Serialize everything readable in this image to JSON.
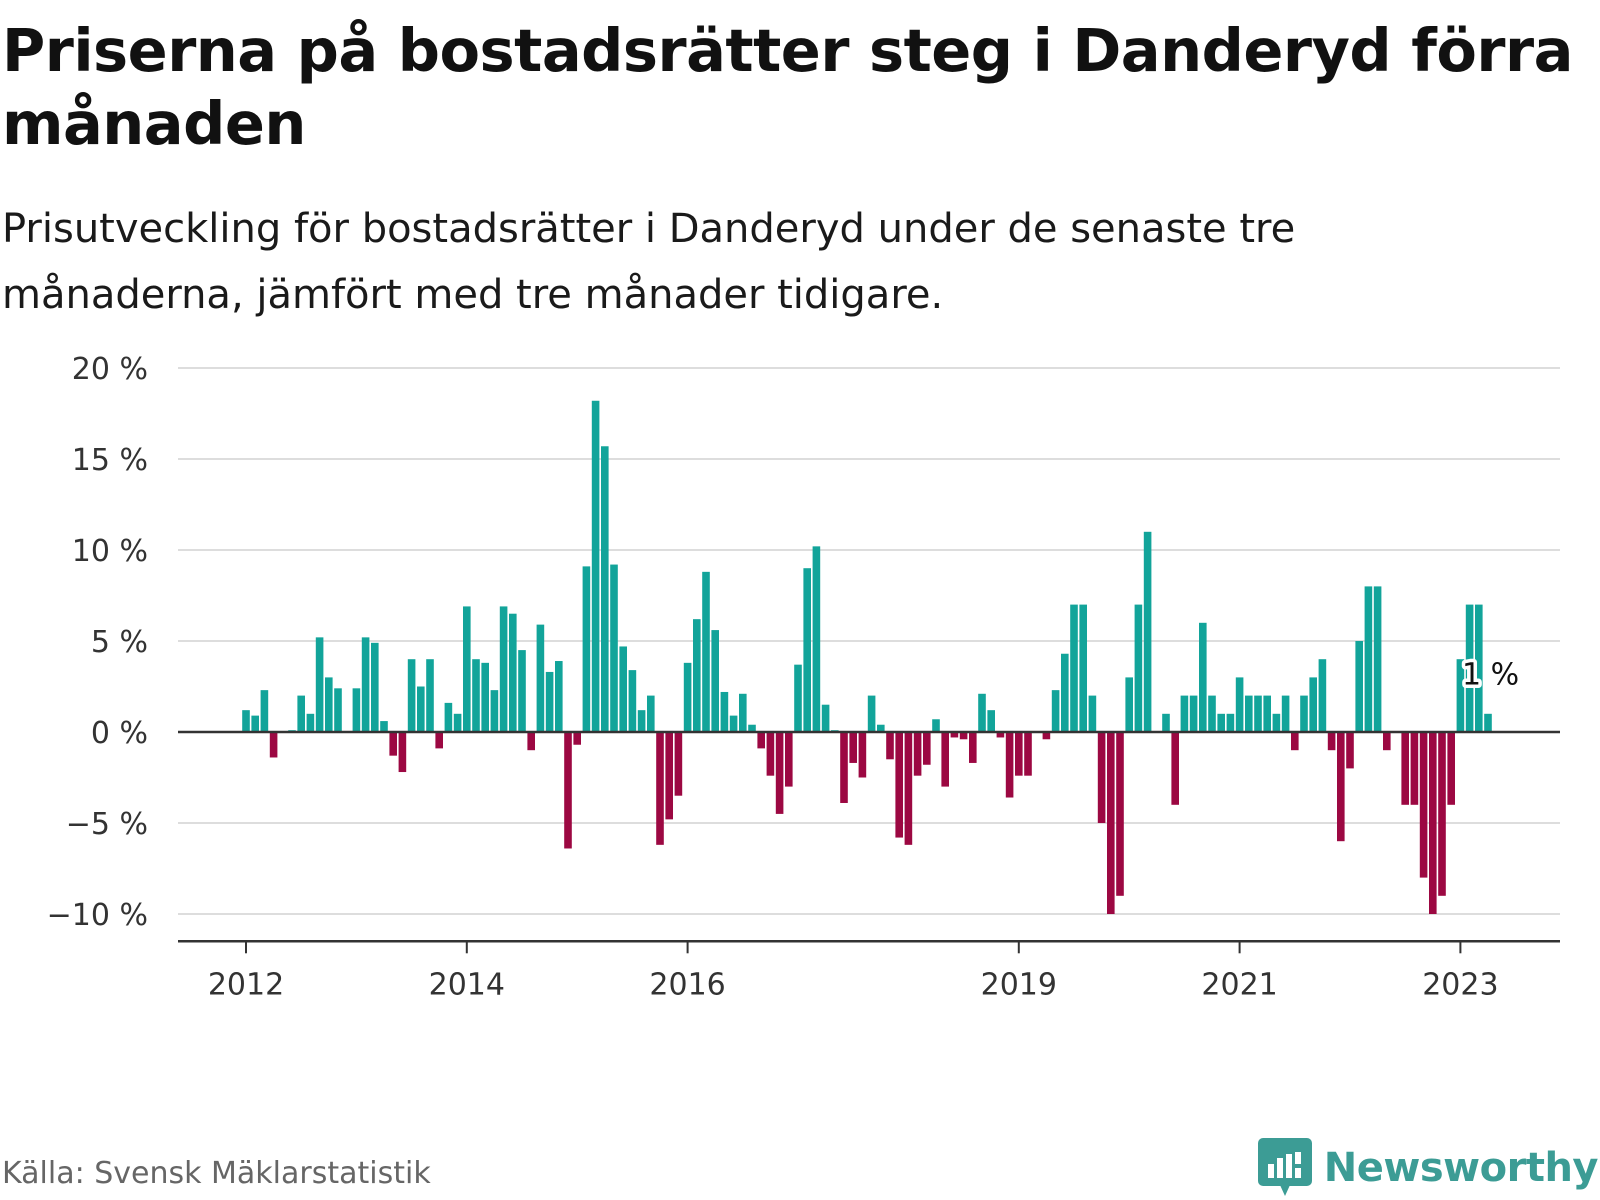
{
  "title": "Priserna på bostadsrätter steg i Danderyd förra månaden",
  "subtitle": "Prisutveckling för bostadsrätter i Danderyd under de senaste tre månaderna, jämfört med tre månader tidigare.",
  "source": "Källa: Svensk Mäklarstatistik",
  "brand": "Newsworthy",
  "colors": {
    "positive": "#12a49a",
    "negative": "#9c0842",
    "grid": "#dddddd",
    "axis": "#333333",
    "brand": "#3c9c95"
  },
  "chart_data": {
    "type": "bar",
    "title": "Priserna på bostadsrätter steg i Danderyd förra månaden",
    "xlabel": "",
    "ylabel": "",
    "ylim": [
      -11.5,
      20
    ],
    "grid": true,
    "y_ticks": [
      {
        "value": 20,
        "label": "20 %"
      },
      {
        "value": 15,
        "label": "15 %"
      },
      {
        "value": 10,
        "label": "10 %"
      },
      {
        "value": 5,
        "label": "5 %"
      },
      {
        "value": 0,
        "label": "0 %"
      },
      {
        "value": -5,
        "label": "−5 %"
      },
      {
        "value": -10,
        "label": "−10 %"
      }
    ],
    "x_ticks": [
      {
        "index": 0,
        "label": "2012"
      },
      {
        "index": 24,
        "label": "2014"
      },
      {
        "index": 48,
        "label": "2016"
      },
      {
        "index": 84,
        "label": "2019"
      },
      {
        "index": 108,
        "label": "2021"
      },
      {
        "index": 132,
        "label": "2023"
      }
    ],
    "period_start": "2012-01",
    "values": [
      1.2,
      0.9,
      2.3,
      -1.4,
      0,
      0.1,
      2.0,
      1.0,
      5.2,
      3.0,
      2.4,
      0,
      2.4,
      5.2,
      4.9,
      0.6,
      -1.3,
      -2.2,
      4.0,
      2.5,
      4.0,
      -0.9,
      1.6,
      1.0,
      6.9,
      4.0,
      3.8,
      2.3,
      6.9,
      6.5,
      4.5,
      -1.0,
      5.9,
      3.3,
      3.9,
      -6.4,
      -0.7,
      9.1,
      18.2,
      15.7,
      9.2,
      4.7,
      3.4,
      1.2,
      2.0,
      -6.2,
      -4.8,
      -3.5,
      3.8,
      6.2,
      8.8,
      5.6,
      2.2,
      0.9,
      2.1,
      0.4,
      -0.9,
      -2.4,
      -4.5,
      -3.0,
      3.7,
      9.0,
      10.2,
      1.5,
      0.1,
      -3.9,
      -1.7,
      -2.5,
      2.0,
      0.4,
      -1.5,
      -5.8,
      -6.2,
      -2.4,
      -1.8,
      0.7,
      -3.0,
      -0.3,
      -0.4,
      -1.7,
      2.1,
      1.2,
      -0.3,
      -3.6,
      -2.4,
      -2.4,
      0,
      -0.4,
      2.3,
      4.3,
      7.0,
      7.0,
      2.0,
      -5.0,
      -10.0,
      -9.0,
      3.0,
      7.0,
      11.0,
      0,
      1.0,
      -4.0,
      2.0,
      2.0,
      6.0,
      2.0,
      1.0,
      1.0,
      3.0,
      2.0,
      2.0,
      2.0,
      1.0,
      2.0,
      -1.0,
      2.0,
      3.0,
      4.0,
      -1.0,
      -6.0,
      -2.0,
      5.0,
      8.0,
      8.0,
      -1.0,
      0,
      -4.0,
      -4.0,
      -8.0,
      -10.0,
      -9.0,
      -4.0,
      4.0,
      7.0,
      7.0,
      1.0
    ],
    "last_value_label": "1 %"
  }
}
